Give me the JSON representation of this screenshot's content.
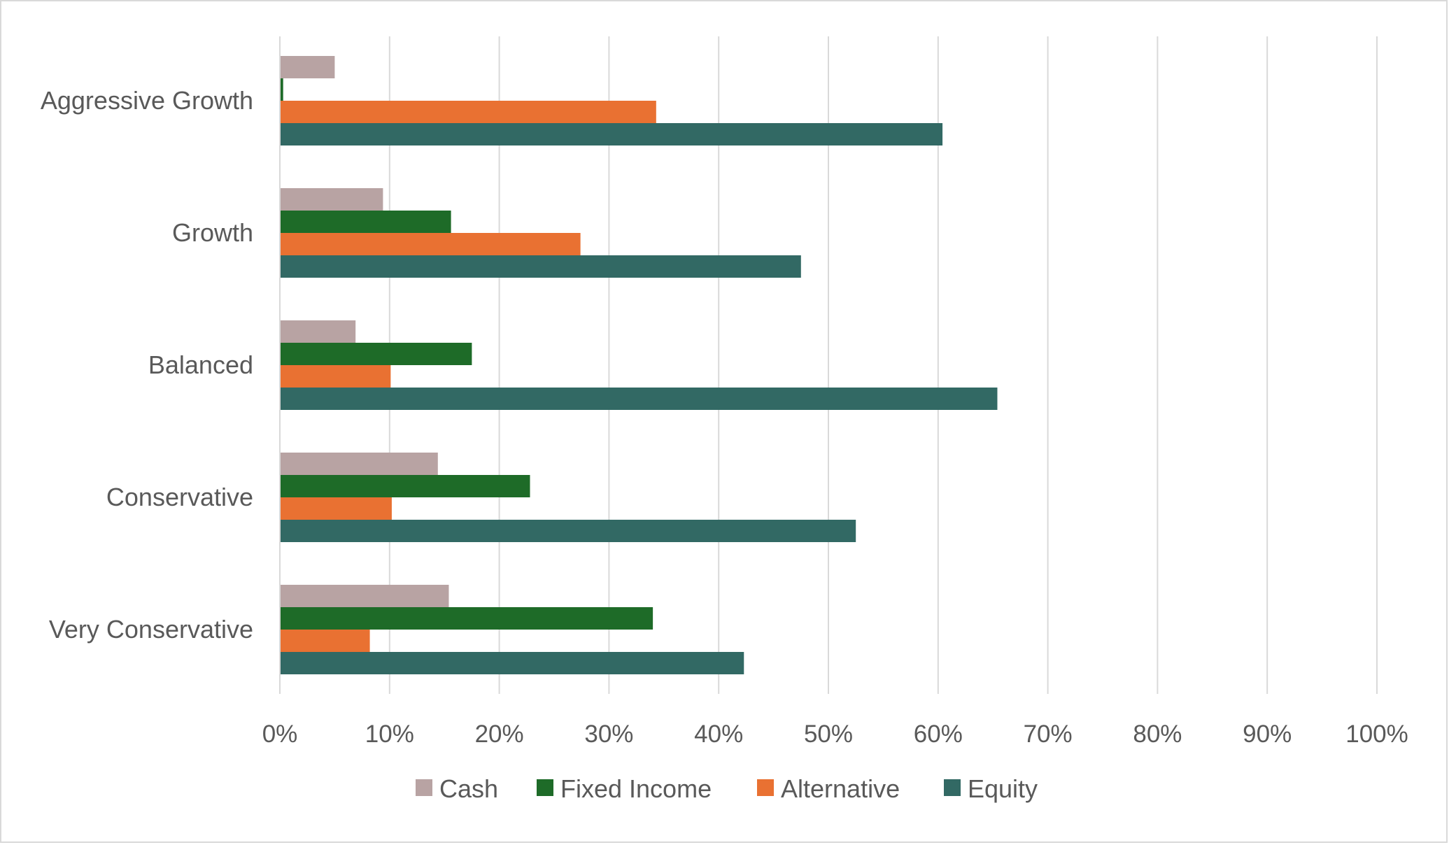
{
  "chart_data": {
    "type": "bar",
    "orientation": "horizontal",
    "title": "",
    "xlabel": "",
    "ylabel": "",
    "categories": [
      "Aggressive Growth",
      "Growth",
      "Balanced",
      "Conservative",
      "Very Conservative"
    ],
    "series": [
      {
        "name": "Cash",
        "color": "#b8a3a3",
        "values": [
          5.0,
          9.4,
          6.9,
          14.4,
          15.4
        ]
      },
      {
        "name": "Fixed Income",
        "color": "#1e6b28",
        "values": [
          0.3,
          15.6,
          17.5,
          22.8,
          34.0
        ]
      },
      {
        "name": "Alternative",
        "color": "#e97132",
        "values": [
          34.3,
          27.4,
          10.1,
          10.2,
          8.2
        ]
      },
      {
        "name": "Equity",
        "color": "#326964",
        "values": [
          60.4,
          47.5,
          65.4,
          52.5,
          42.3
        ]
      }
    ],
    "xlim": [
      0,
      100
    ],
    "x_ticks": [
      "0%",
      "10%",
      "20%",
      "30%",
      "40%",
      "50%",
      "60%",
      "70%",
      "80%",
      "90%",
      "100%"
    ],
    "grid": "vertical",
    "legend": "bottom"
  }
}
